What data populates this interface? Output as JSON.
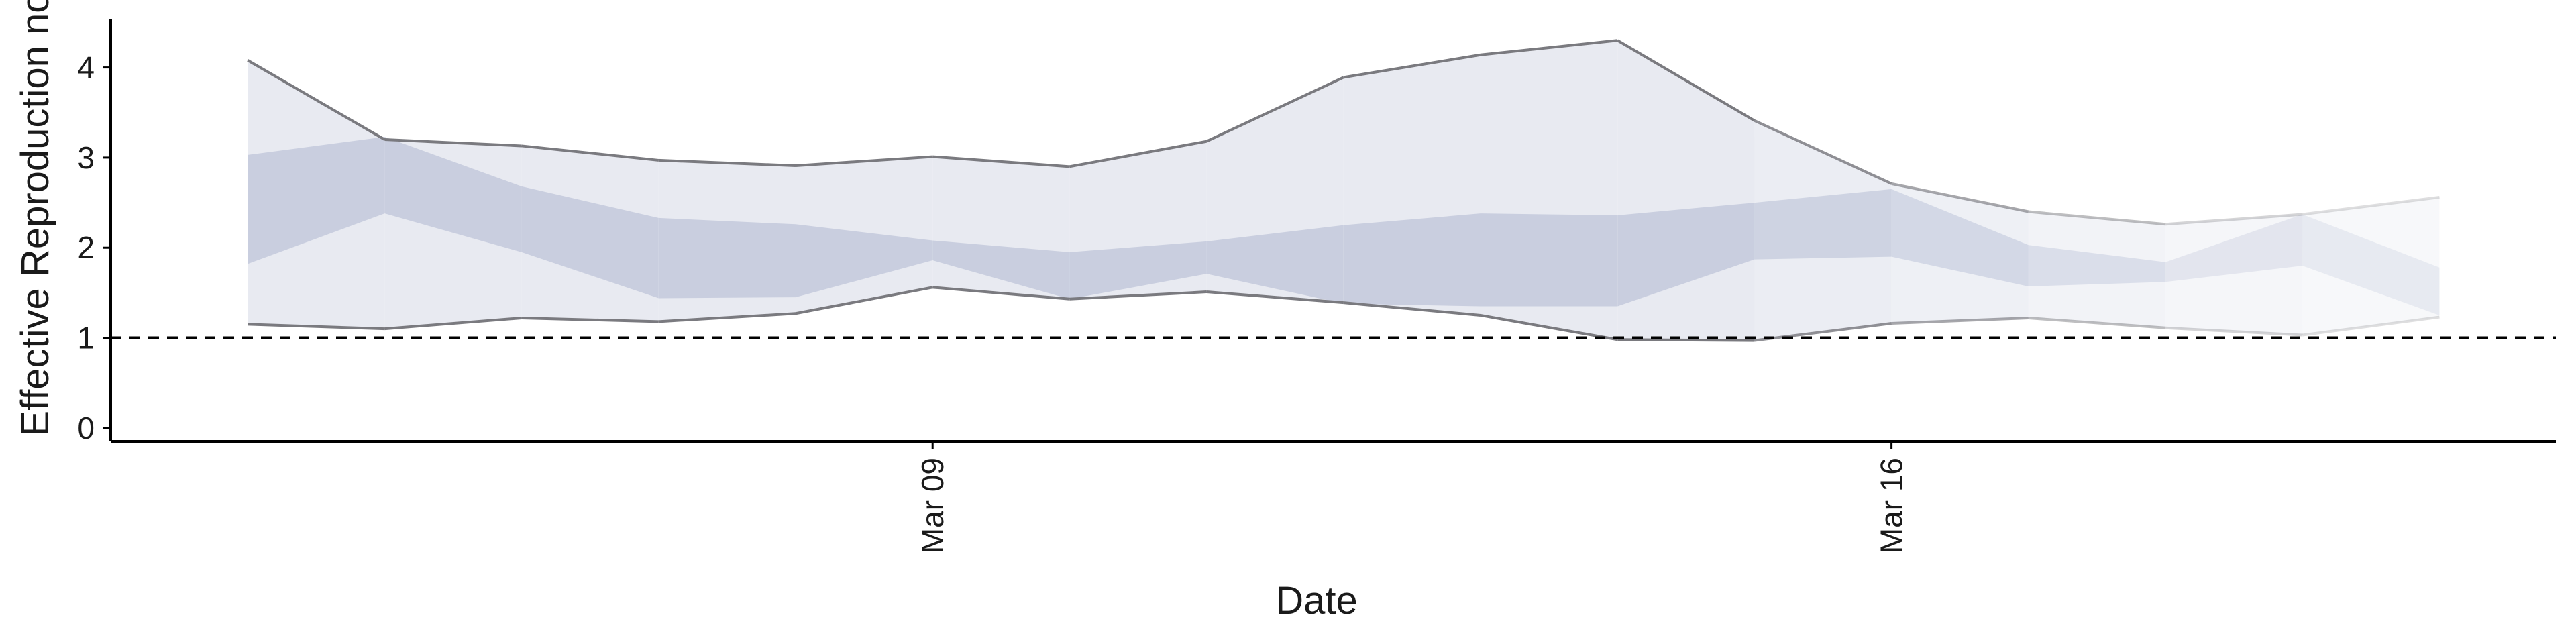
{
  "chart_data": {
    "type": "area",
    "title": "",
    "xlabel": "Date",
    "ylabel": "Effective Reproduction no",
    "ylim": [
      -0.15,
      4.6
    ],
    "y_ticks": [
      "0",
      "1",
      "2",
      "3",
      "4"
    ],
    "x_ticks": [
      {
        "date": "2020-03-09",
        "label": "Mar 09"
      },
      {
        "date": "2020-03-16",
        "label": "Mar 16"
      }
    ],
    "x": [
      "2020-03-03",
      "2020-03-04",
      "2020-03-05",
      "2020-03-06",
      "2020-03-07",
      "2020-03-08",
      "2020-03-09",
      "2020-03-10",
      "2020-03-11",
      "2020-03-12",
      "2020-03-13",
      "2020-03-14",
      "2020-03-15",
      "2020-03-16",
      "2020-03-17",
      "2020-03-18",
      "2020-03-19",
      "2020-03-20"
    ],
    "reference_line": {
      "y": 1,
      "style": "dashed"
    },
    "series": [
      {
        "lower_95": [
          1.15,
          1.1,
          1.22,
          1.18,
          1.27,
          1.56,
          1.43,
          1.51,
          1.39,
          1.25,
          0.98,
          0.97,
          1.16,
          1.22,
          1.11,
          1.03,
          1.23
        ],
        "upper_95": [
          4.08,
          3.2,
          3.13,
          2.97,
          2.91,
          3.01,
          2.9,
          3.18,
          3.89,
          4.14,
          4.3,
          3.41,
          2.71,
          2.4,
          2.26,
          2.37,
          2.56
        ],
        "lower_50": [
          1.82,
          2.38,
          1.95,
          1.44,
          1.45,
          1.86,
          1.43,
          1.71,
          1.38,
          1.35,
          1.35,
          1.87,
          1.9,
          1.57,
          1.62,
          1.8,
          1.25
        ],
        "upper_50": [
          3.03,
          3.23,
          2.68,
          2.33,
          2.26,
          2.08,
          1.95,
          2.07,
          2.25,
          2.38,
          2.36,
          2.5,
          2.65,
          2.03,
          1.84,
          2.37,
          1.78
        ],
        "x_index_start": 1
      }
    ],
    "colors": {
      "band_95": "#e8eaf1",
      "band_50": "#c3c9dc",
      "edge": "#7a7a7f",
      "reference": "#000000"
    }
  }
}
